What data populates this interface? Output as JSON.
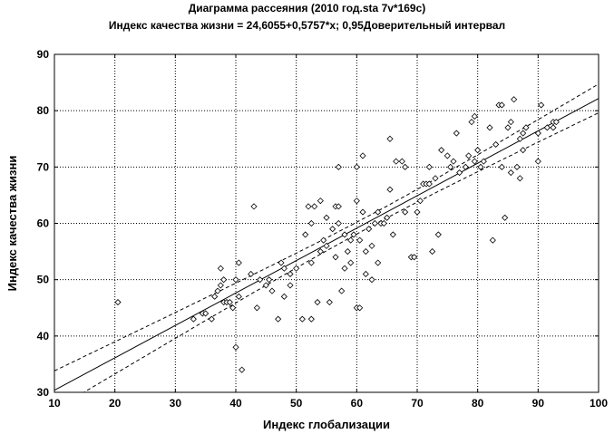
{
  "chart_data": {
    "type": "scatter",
    "title": "Диаграмма рассеяния (2010 год.sta 7v*169c)",
    "subtitle": "Индекс качества жизни = 24,6055+0,5757*x; 0,95Доверительный интервал",
    "xlabel": "Индекс глобализации",
    "ylabel": "Индекс качества жизни",
    "xlim": [
      10,
      100
    ],
    "ylim": [
      30,
      90
    ],
    "xticks": [
      10,
      20,
      30,
      40,
      50,
      60,
      70,
      80,
      90,
      100
    ],
    "yticks": [
      30,
      40,
      50,
      60,
      70,
      80,
      90
    ],
    "grid": true,
    "regression": {
      "intercept": 24.6055,
      "slope": 0.5757
    },
    "confidence_level": 0.95,
    "points": [
      [
        20.5,
        46
      ],
      [
        33,
        43
      ],
      [
        34.5,
        44
      ],
      [
        35,
        44
      ],
      [
        36,
        43
      ],
      [
        36.5,
        47
      ],
      [
        37,
        48
      ],
      [
        37.5,
        49
      ],
      [
        37.5,
        52
      ],
      [
        38,
        50
      ],
      [
        38,
        46
      ],
      [
        38.5,
        46
      ],
      [
        39,
        46
      ],
      [
        39.5,
        45
      ],
      [
        40,
        38
      ],
      [
        40,
        50
      ],
      [
        40.5,
        53
      ],
      [
        40.5,
        47
      ],
      [
        41,
        34
      ],
      [
        42.5,
        51
      ],
      [
        43,
        63
      ],
      [
        43.5,
        45
      ],
      [
        44,
        50
      ],
      [
        45,
        49
      ],
      [
        45.5,
        50
      ],
      [
        46,
        48
      ],
      [
        47,
        43
      ],
      [
        47.5,
        53
      ],
      [
        48,
        52
      ],
      [
        48,
        47
      ],
      [
        49,
        49
      ],
      [
        49,
        51
      ],
      [
        50,
        52
      ],
      [
        51,
        43
      ],
      [
        51.5,
        58
      ],
      [
        52,
        63
      ],
      [
        52.5,
        60
      ],
      [
        52.5,
        53
      ],
      [
        52.5,
        43
      ],
      [
        53,
        63
      ],
      [
        53.5,
        46
      ],
      [
        54,
        64
      ],
      [
        54,
        55
      ],
      [
        54.5,
        57
      ],
      [
        55,
        56
      ],
      [
        55,
        61
      ],
      [
        55.5,
        46
      ],
      [
        56,
        59
      ],
      [
        56.5,
        63
      ],
      [
        56.5,
        54
      ],
      [
        57,
        70
      ],
      [
        57,
        63
      ],
      [
        57,
        60
      ],
      [
        57.5,
        48
      ],
      [
        58,
        58
      ],
      [
        58,
        52
      ],
      [
        58.5,
        55
      ],
      [
        59,
        57
      ],
      [
        59,
        53
      ],
      [
        59.5,
        58
      ],
      [
        60,
        64
      ],
      [
        60,
        70
      ],
      [
        60,
        45
      ],
      [
        60.5,
        45
      ],
      [
        60.5,
        57
      ],
      [
        61,
        72
      ],
      [
        61,
        62
      ],
      [
        61.5,
        55
      ],
      [
        61.5,
        51
      ],
      [
        62,
        59
      ],
      [
        62.5,
        56
      ],
      [
        62.5,
        50
      ],
      [
        63,
        60
      ],
      [
        63.5,
        62
      ],
      [
        63.5,
        53
      ],
      [
        64,
        60
      ],
      [
        64.5,
        60
      ],
      [
        65,
        61
      ],
      [
        65.5,
        75
      ],
      [
        65.5,
        66
      ],
      [
        66,
        58
      ],
      [
        66.5,
        71
      ],
      [
        67.5,
        71
      ],
      [
        68,
        70
      ],
      [
        68,
        62
      ],
      [
        69,
        54
      ],
      [
        69.5,
        54
      ],
      [
        70,
        62
      ],
      [
        70.5,
        64
      ],
      [
        71,
        67
      ],
      [
        71.5,
        67
      ],
      [
        72,
        67
      ],
      [
        72,
        70
      ],
      [
        72.5,
        55
      ],
      [
        73,
        68
      ],
      [
        73.5,
        58
      ],
      [
        74,
        73
      ],
      [
        75,
        72
      ],
      [
        75.5,
        70
      ],
      [
        76,
        71
      ],
      [
        76.5,
        76
      ],
      [
        77,
        69
      ],
      [
        78,
        70
      ],
      [
        78.5,
        72
      ],
      [
        79,
        78
      ],
      [
        79.5,
        79
      ],
      [
        79.5,
        71
      ],
      [
        80,
        73
      ],
      [
        80.5,
        70
      ],
      [
        81,
        71
      ],
      [
        82,
        77
      ],
      [
        82.5,
        57
      ],
      [
        83,
        74
      ],
      [
        83.5,
        81
      ],
      [
        84,
        81
      ],
      [
        84,
        70
      ],
      [
        84.5,
        61
      ],
      [
        85,
        77
      ],
      [
        85.5,
        69
      ],
      [
        85.5,
        78
      ],
      [
        86,
        82
      ],
      [
        86.5,
        70
      ],
      [
        87,
        75
      ],
      [
        87,
        68
      ],
      [
        87.5,
        76
      ],
      [
        87.5,
        73
      ],
      [
        88,
        77
      ],
      [
        90,
        76
      ],
      [
        90,
        71
      ],
      [
        90.5,
        81
      ],
      [
        91.5,
        77
      ],
      [
        92.5,
        77
      ],
      [
        92.5,
        78
      ],
      [
        93,
        78
      ]
    ]
  }
}
